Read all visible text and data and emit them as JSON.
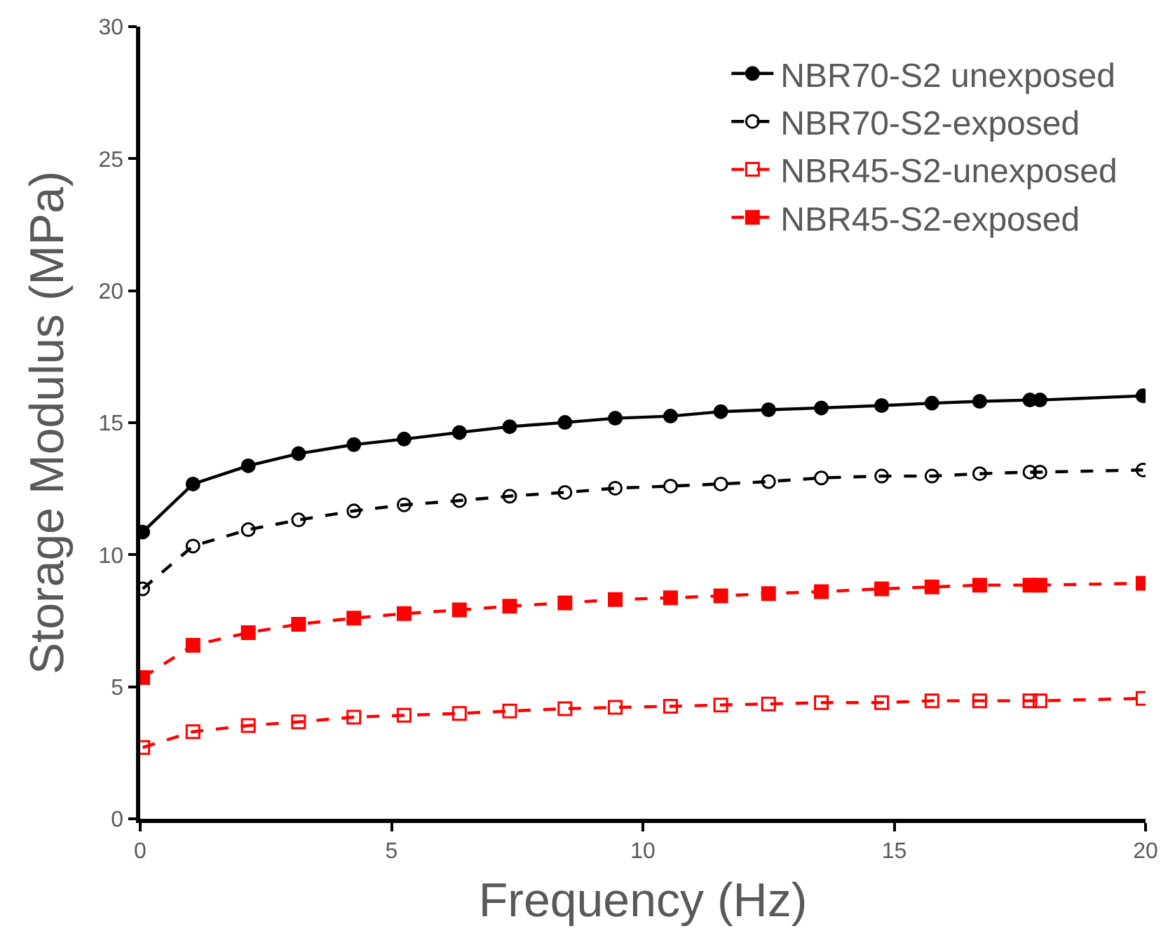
{
  "chart_data": {
    "type": "line",
    "xlabel": "Frequency (Hz)",
    "ylabel": "Storage Modulus (MPa)",
    "x": [
      0.05,
      1.05,
      2.15,
      3.15,
      4.25,
      5.25,
      6.35,
      7.35,
      8.45,
      9.45,
      10.55,
      11.55,
      12.5,
      13.55,
      14.75,
      15.75,
      16.7,
      17.7,
      17.9,
      19.95
    ],
    "xlim": [
      0,
      20
    ],
    "xticks": [
      0,
      5,
      10,
      15,
      20
    ],
    "ylim": [
      0,
      30
    ],
    "yticks": [
      0,
      5,
      10,
      15,
      20,
      25,
      30
    ],
    "legend": "top right",
    "series": [
      {
        "name": "NBR70-S2 unexposed",
        "color": "#000000",
        "marker": "circle",
        "line_style": "solid",
        "values": [
          10.86,
          12.68,
          13.37,
          13.83,
          14.17,
          14.38,
          14.63,
          14.85,
          15.01,
          15.17,
          15.25,
          15.42,
          15.49,
          15.56,
          15.65,
          15.74,
          15.81,
          15.86,
          15.86,
          16.02
        ]
      },
      {
        "name": "NBR70-S2-exposed",
        "color": "#000000",
        "marker": "circle-open",
        "line_style": "dashed",
        "values": [
          8.71,
          10.33,
          10.95,
          11.32,
          11.66,
          11.89,
          12.05,
          12.22,
          12.36,
          12.52,
          12.6,
          12.68,
          12.77,
          12.91,
          12.98,
          12.98,
          13.07,
          13.13,
          13.13,
          13.21
        ]
      },
      {
        "name": "NBR45-S2-unexposed",
        "color": "#ff0000",
        "marker": "square-open",
        "line_style": "dashed",
        "values": [
          2.7,
          3.3,
          3.53,
          3.67,
          3.85,
          3.92,
          3.99,
          4.08,
          4.17,
          4.22,
          4.26,
          4.31,
          4.35,
          4.4,
          4.4,
          4.47,
          4.47,
          4.47,
          4.47,
          4.56
        ]
      },
      {
        "name": "NBR45-S2-exposed",
        "color": "#ff0000",
        "marker": "square",
        "line_style": "dashed",
        "values": [
          5.35,
          6.57,
          7.05,
          7.37,
          7.6,
          7.77,
          7.91,
          8.05,
          8.18,
          8.3,
          8.37,
          8.44,
          8.53,
          8.6,
          8.71,
          8.78,
          8.85,
          8.85,
          8.85,
          8.92
        ]
      }
    ]
  }
}
